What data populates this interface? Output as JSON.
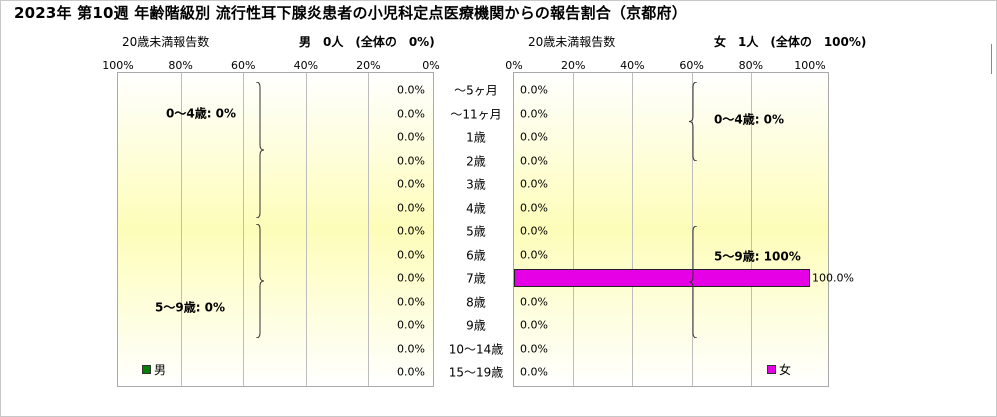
{
  "title": "2023年 第10週 年齢階級別 流行性耳下腺炎患者の小児科定点医療機関からの報告割合（京都府）",
  "headers": {
    "male_under20": "20歳未満報告数",
    "male_summary": "男　0人　(全体の　0%)",
    "female_under20": "20歳未満報告数",
    "female_summary": "女　1人　(全体の　100%)"
  },
  "colors": {
    "male": "#008000",
    "female": "#e600e6",
    "background_band": "#fdfdb9"
  },
  "chart_data": {
    "type": "bar",
    "orientation": "horizontal",
    "layout": "population-pyramid",
    "categories": [
      "～5ヶ月",
      "～11ヶ月",
      "1歳",
      "2歳",
      "3歳",
      "4歳",
      "5歳",
      "6歳",
      "7歳",
      "8歳",
      "9歳",
      "10～14歳",
      "15～19歳"
    ],
    "series": [
      {
        "name": "男",
        "side": "left",
        "values": [
          0,
          0,
          0,
          0,
          0,
          0,
          0,
          0,
          0,
          0,
          0,
          0,
          0
        ],
        "value_labels": [
          "0.0%",
          "0.0%",
          "0.0%",
          "0.0%",
          "0.0%",
          "0.0%",
          "0.0%",
          "0.0%",
          "0.0%",
          "0.0%",
          "0.0%",
          "0.0%",
          "0.0%"
        ]
      },
      {
        "name": "女",
        "side": "right",
        "values": [
          0,
          0,
          0,
          0,
          0,
          0,
          0,
          0,
          100,
          0,
          0,
          0,
          0
        ],
        "value_labels": [
          "0.0%",
          "0.0%",
          "0.0%",
          "0.0%",
          "0.0%",
          "0.0%",
          "0.0%",
          "0.0%",
          "100.0%",
          "0.0%",
          "0.0%",
          "0.0%",
          "0.0%"
        ]
      }
    ],
    "xlim": [
      0,
      100
    ],
    "male_axis_ticks": [
      "100%",
      "80%",
      "60%",
      "40%",
      "20%",
      "0%"
    ],
    "female_axis_ticks": [
      "0%",
      "20%",
      "40%",
      "60%",
      "80%",
      "100%"
    ],
    "male_groups": [
      "0～4歳: 0%",
      "5～9歳: 0%"
    ],
    "female_groups": [
      "0～4歳: 0%",
      "5～9歳: 100%"
    ],
    "legend": {
      "male": "男",
      "female": "女"
    },
    "grid": true
  }
}
